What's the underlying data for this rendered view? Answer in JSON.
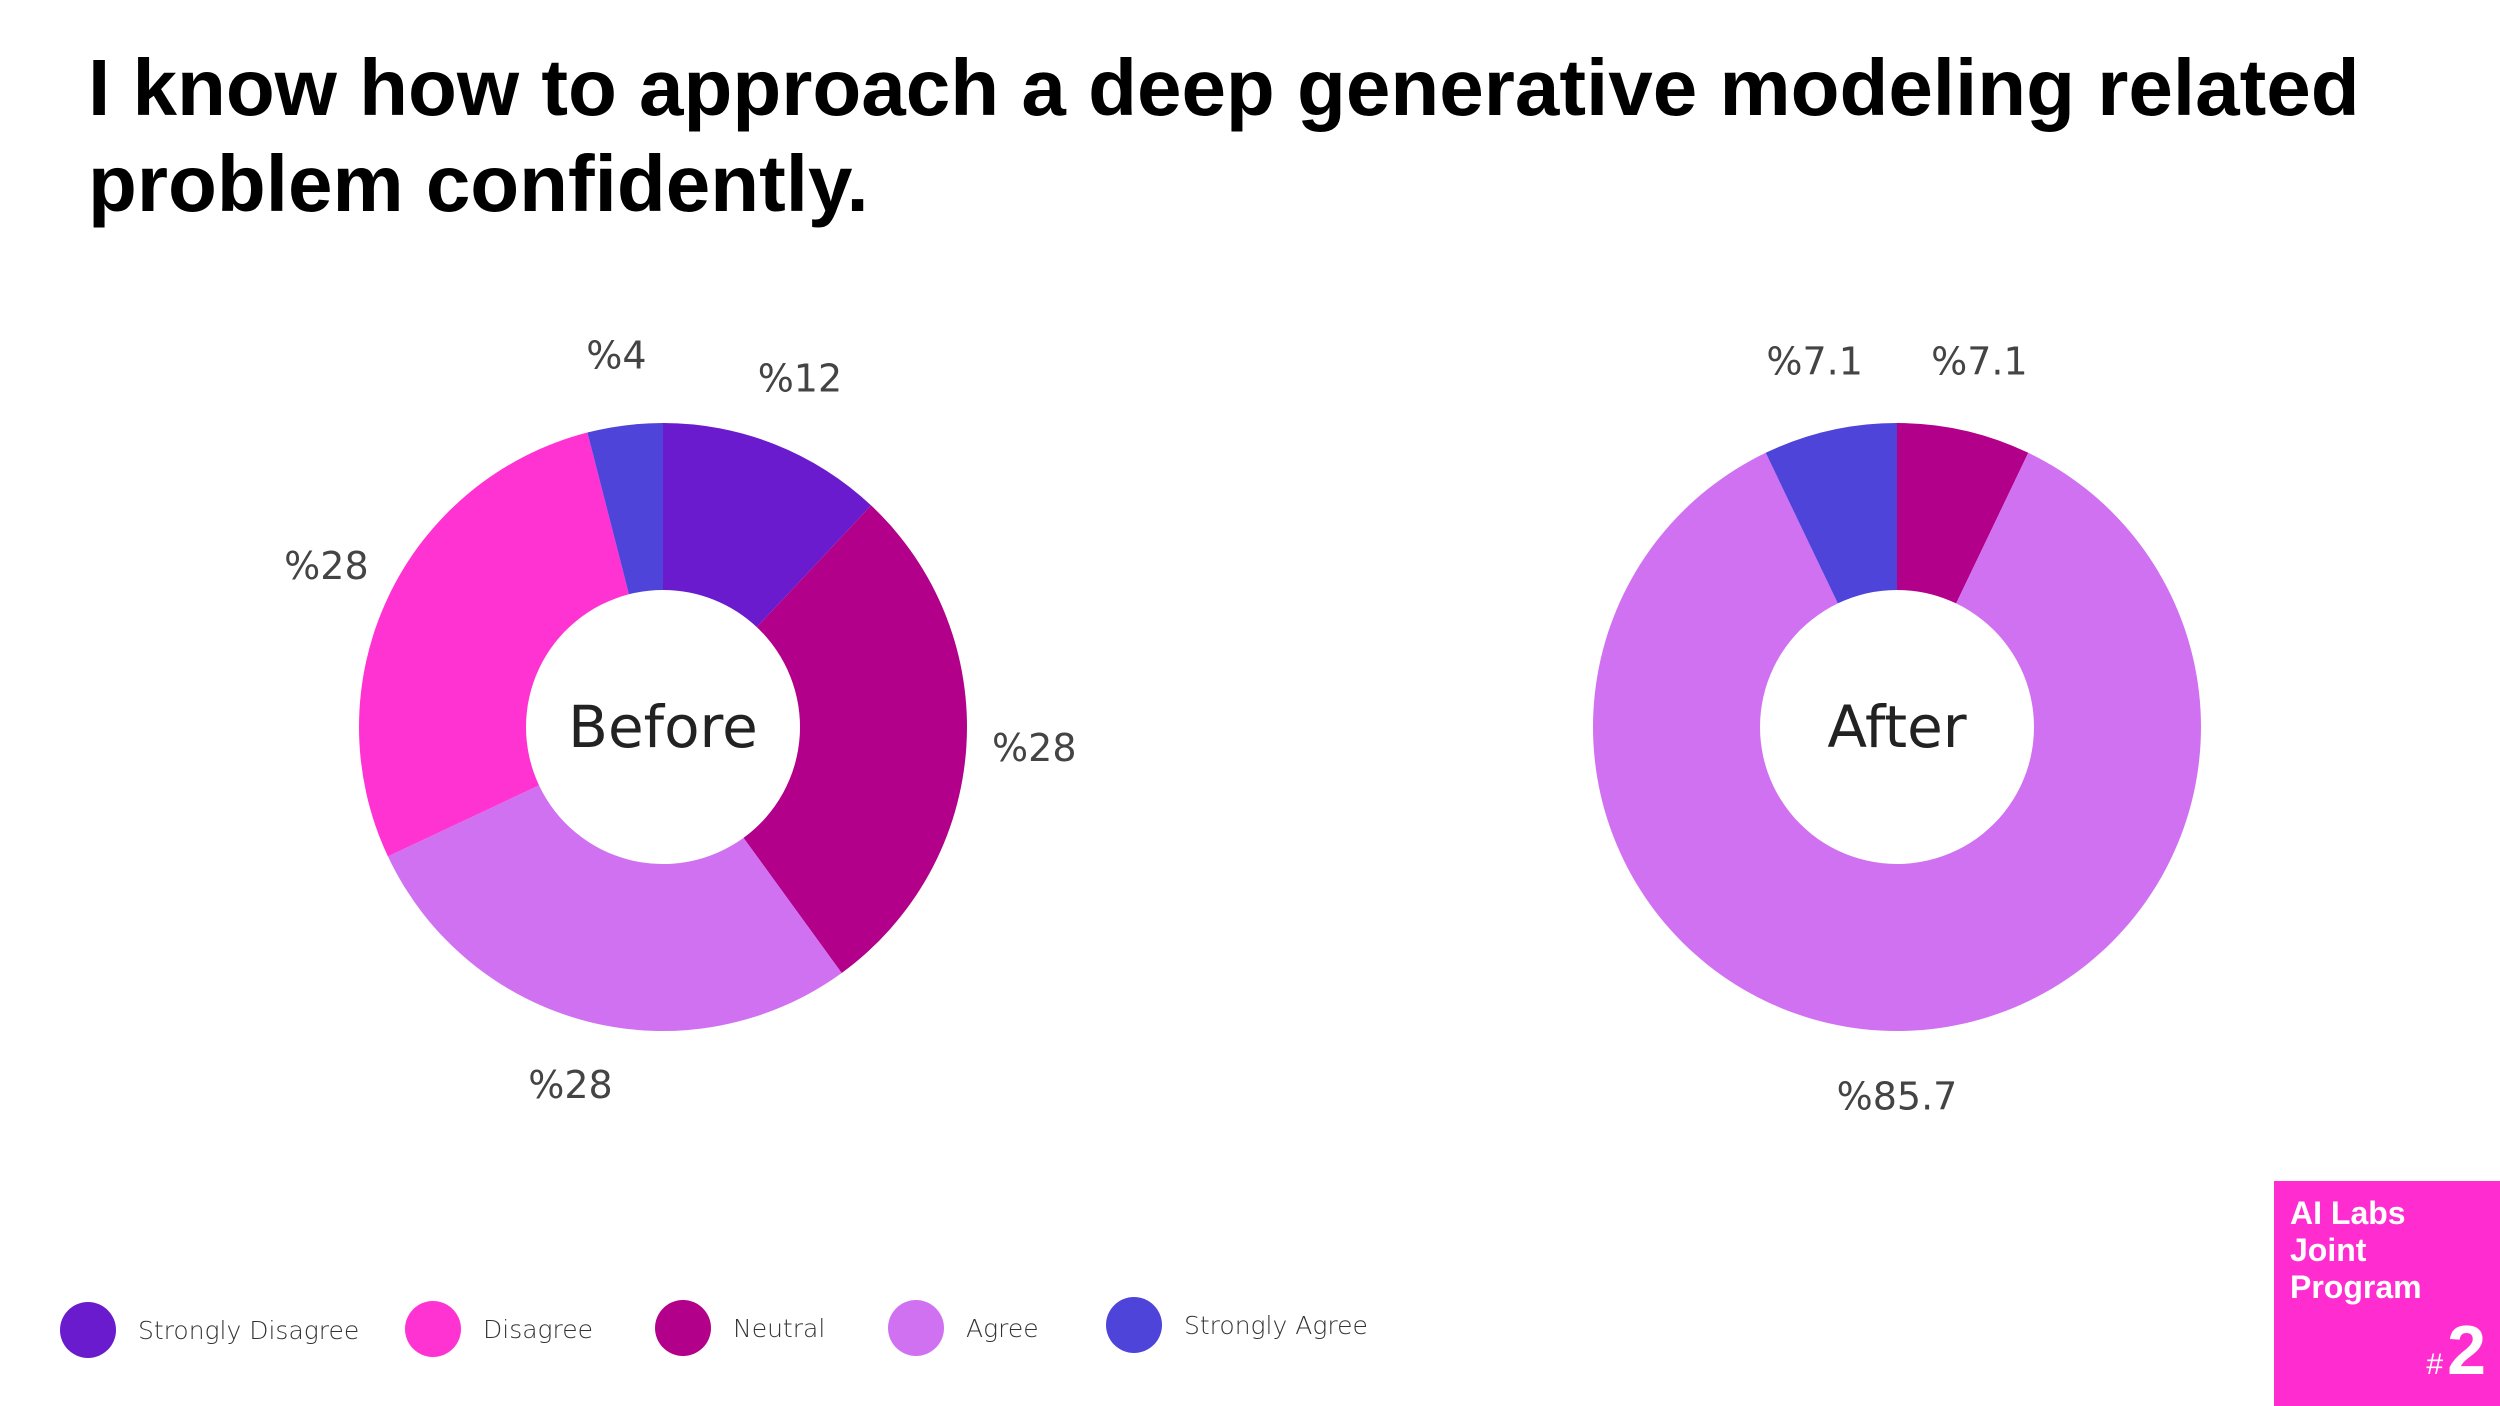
{
  "title": "I know how to approach a deep generative modeling related problem confidently.",
  "colors": {
    "strongly_disagree": "#6a1bcd",
    "disagree": "#ff32d2",
    "neutral": "#b3008a",
    "agree": "#d071f2",
    "strongly_agree": "#4f44d9",
    "brand": "#ff2dcf"
  },
  "chart_data": [
    {
      "type": "pie",
      "variant": "donut",
      "center_label": "Before",
      "categories": [
        "Strongly Disagree",
        "Neutral",
        "Agree",
        "Disagree",
        "Strongly Agree"
      ],
      "values": [
        12,
        28,
        28,
        28,
        4
      ],
      "labels": [
        "%12",
        "%28",
        "%28",
        "%28",
        "%4"
      ],
      "colors": [
        "#6a1bcd",
        "#b3008a",
        "#d071f2",
        "#ff32d2",
        "#4f44d9"
      ]
    },
    {
      "type": "pie",
      "variant": "donut",
      "center_label": "After",
      "categories": [
        "Neutral",
        "Agree",
        "Strongly Agree"
      ],
      "values": [
        7.1,
        85.7,
        7.1
      ],
      "labels": [
        "%7.1",
        "%85.7",
        "%7.1"
      ],
      "colors": [
        "#b3008a",
        "#d071f2",
        "#4f44d9"
      ]
    }
  ],
  "legend": [
    {
      "label": "Strongly Disagree",
      "color": "#6a1bcd"
    },
    {
      "label": "Disagree",
      "color": "#ff32d2"
    },
    {
      "label": "Neutral",
      "color": "#b3008a"
    },
    {
      "label": "Agree",
      "color": "#d071f2"
    },
    {
      "label": "Strongly Agree",
      "color": "#4f44d9"
    }
  ],
  "brand": {
    "text": "AI Labs Joint Program",
    "hash": "#",
    "number": "2"
  }
}
